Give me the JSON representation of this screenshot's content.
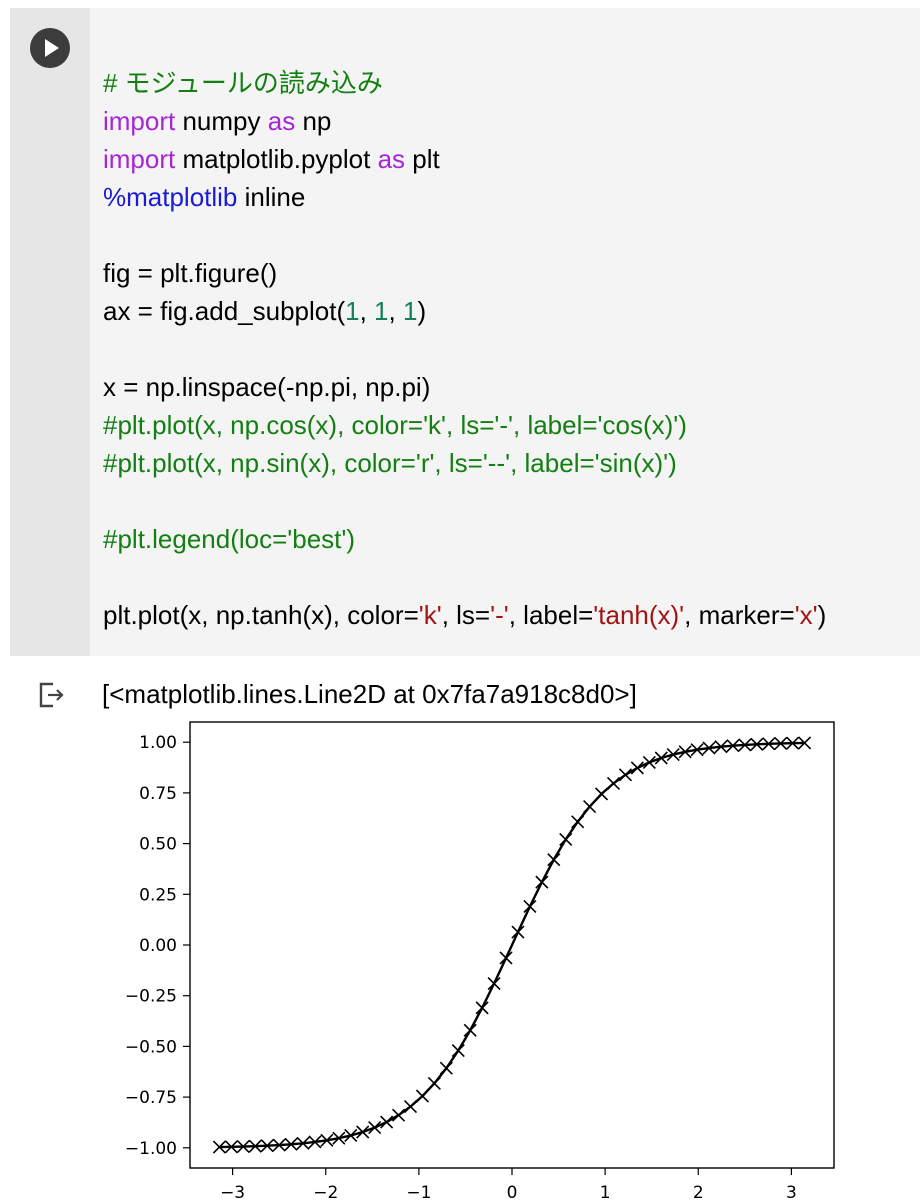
{
  "run_button": {
    "icon": "play-icon"
  },
  "code": {
    "line_comment_modules": "# モジュールの読み込み",
    "kw_import_1": "import",
    "import_numpy_rest": " numpy ",
    "kw_as_1": "as",
    "np_alias": " np",
    "kw_import_2": "import",
    "import_plt_rest": " matplotlib.pyplot ",
    "kw_as_2": "as",
    "plt_alias": " plt",
    "magic": "%matplotlib",
    "magic_rest": " inline",
    "fig_line": "fig = plt.figure()",
    "ax_prefix": "ax = fig.add_subplot(",
    "ax_n1": "1",
    "ax_sep1": ", ",
    "ax_n2": "1",
    "ax_sep2": ", ",
    "ax_n3": "1",
    "ax_suffix": ")",
    "x_line": "x = np.linspace(-np.pi, np.pi)",
    "comment_cos": "#plt.plot(x, np.cos(x), color='k', ls='-', label='cos(x)')",
    "comment_sin": "#plt.plot(x, np.sin(x), color='r', ls='--', label='sin(x)')",
    "comment_legend": "#plt.legend(loc='best')",
    "plot_p1": "plt.plot(x, np.tanh(x), color=",
    "plot_s1": "'k'",
    "plot_p2": ", ls=",
    "plot_s2": "'-'",
    "plot_p3": ", label=",
    "plot_s3": "'tanh(x)'",
    "plot_p4": ", marker=",
    "plot_s4": "'x'",
    "plot_p5": ")"
  },
  "output": {
    "icon": "output-arrow-icon",
    "text": "[<matplotlib.lines.Line2D at 0x7fa7a918c8d0>]"
  },
  "colors": {
    "keyword": "#a626d6",
    "comment": "#137f13",
    "magic": "#1b1bd6",
    "number": "#137f5c",
    "string": "#a11414"
  },
  "chart_data": {
    "type": "line",
    "function": "tanh",
    "x_range": [
      -3.14159,
      3.14159
    ],
    "num_points": 50,
    "line_color": "#000000",
    "line_style": "solid",
    "marker": "x",
    "xlim": [
      -3.4575,
      3.4575
    ],
    "ylim": [
      -1.0996,
      1.0996
    ],
    "xticks": [
      -3,
      -2,
      -1,
      0,
      1,
      2,
      3
    ],
    "xtick_labels": [
      "−3",
      "−2",
      "−1",
      "0",
      "1",
      "2",
      "3"
    ],
    "yticks": [
      -1.0,
      -0.75,
      -0.5,
      -0.25,
      0.0,
      0.25,
      0.5,
      0.75,
      1.0
    ],
    "ytick_labels": [
      "−1.00",
      "−0.75",
      "−0.50",
      "−0.25",
      "0.00",
      "0.25",
      "0.50",
      "0.75",
      "1.00"
    ],
    "grid": false
  }
}
